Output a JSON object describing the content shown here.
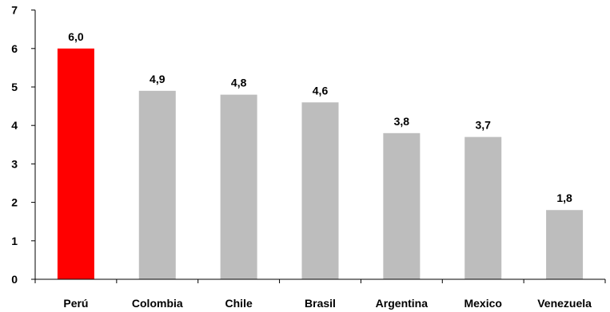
{
  "chart_data": {
    "type": "bar",
    "title": "",
    "xlabel": "",
    "ylabel": "",
    "categories": [
      "Perú",
      "Colombia",
      "Chile",
      "Brasil",
      "Argentina",
      "Mexico",
      "Venezuela"
    ],
    "values": [
      6.0,
      4.9,
      4.8,
      4.6,
      3.8,
      3.7,
      1.8
    ],
    "data_labels": [
      "6,0",
      "4,9",
      "4,8",
      "4,6",
      "3,8",
      "3,7",
      "1,8"
    ],
    "y_ticks": [
      "0",
      "1",
      "2",
      "3",
      "4",
      "5",
      "6",
      "7"
    ],
    "ylim": [
      0,
      7
    ],
    "grid": false,
    "legend": "none",
    "colors": {
      "highlight": "#ff0000",
      "default": "#bdbdbd",
      "axis": "#000000",
      "text": "#000000"
    },
    "highlight_category": "Perú"
  }
}
